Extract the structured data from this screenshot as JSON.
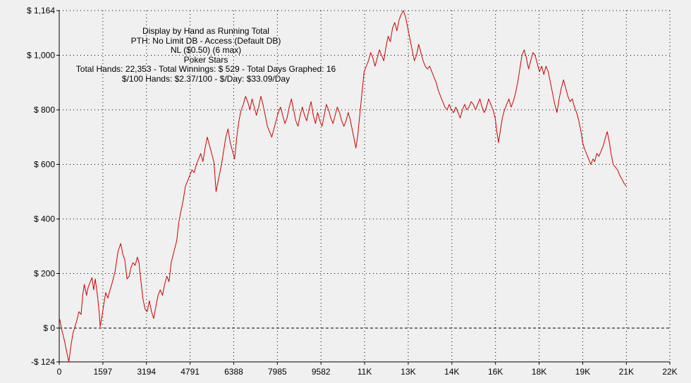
{
  "info": {
    "lines": [
      "Display by Hand as Running Total",
      "PTH: No Limit DB - Access (Default DB)",
      "NL ($0.50) (6 max)",
      "Poker Stars",
      "Total Hands: 22,353 - Total Winnings: $ 529 - Total Days Graphed: 16",
      "$/100 Hands: $2.37/100 - $/Day: $33.09/Day"
    ]
  },
  "colors": {
    "background": "#f0f0f0",
    "line": "#cc0000",
    "grid": "#000000"
  },
  "chart_data": {
    "type": "line",
    "title": "",
    "xlabel": "",
    "ylabel": "",
    "xlim": [
      0,
      22353
    ],
    "ylim": [
      -124,
      1164
    ],
    "grid": true,
    "zero_line": true,
    "x_ticks": [
      {
        "value": 0,
        "label": "0"
      },
      {
        "value": 1597,
        "label": "1597"
      },
      {
        "value": 3194,
        "label": "3194"
      },
      {
        "value": 4791,
        "label": "4791"
      },
      {
        "value": 6388,
        "label": "6388"
      },
      {
        "value": 7985,
        "label": "7985"
      },
      {
        "value": 9582,
        "label": "9582"
      },
      {
        "value": 11179,
        "label": "11K"
      },
      {
        "value": 12776,
        "label": "13K"
      },
      {
        "value": 14373,
        "label": "14K"
      },
      {
        "value": 15970,
        "label": "16K"
      },
      {
        "value": 17567,
        "label": "18K"
      },
      {
        "value": 19164,
        "label": "19K"
      },
      {
        "value": 20761,
        "label": "21K"
      },
      {
        "value": 22353,
        "label": "22K"
      }
    ],
    "y_ticks": [
      {
        "value": 1164,
        "label": "$ 1,164"
      },
      {
        "value": 1000,
        "label": "$ 1,000"
      },
      {
        "value": 800,
        "label": "$ 800"
      },
      {
        "value": 600,
        "label": "$ 600"
      },
      {
        "value": 400,
        "label": "$ 400"
      },
      {
        "value": 200,
        "label": "$ 200"
      },
      {
        "value": 0,
        "label": "$ 0"
      },
      {
        "value": -124,
        "label": "-$ 124"
      }
    ],
    "series": [
      {
        "values": [
          [
            0,
            40
          ],
          [
            100,
            -10
          ],
          [
            200,
            -50
          ],
          [
            300,
            -100
          ],
          [
            350,
            -124
          ],
          [
            420,
            -70
          ],
          [
            500,
            -20
          ],
          [
            560,
            0
          ],
          [
            650,
            30
          ],
          [
            720,
            60
          ],
          [
            800,
            50
          ],
          [
            860,
            120
          ],
          [
            920,
            160
          ],
          [
            1000,
            120
          ],
          [
            1060,
            150
          ],
          [
            1140,
            170
          ],
          [
            1200,
            185
          ],
          [
            1260,
            140
          ],
          [
            1320,
            180
          ],
          [
            1400,
            120
          ],
          [
            1460,
            60
          ],
          [
            1500,
            5
          ],
          [
            1560,
            40
          ],
          [
            1620,
            80
          ],
          [
            1700,
            130
          ],
          [
            1780,
            110
          ],
          [
            1860,
            140
          ],
          [
            1950,
            170
          ],
          [
            2050,
            210
          ],
          [
            2150,
            280
          ],
          [
            2250,
            310
          ],
          [
            2330,
            270
          ],
          [
            2400,
            250
          ],
          [
            2480,
            180
          ],
          [
            2560,
            190
          ],
          [
            2620,
            220
          ],
          [
            2700,
            240
          ],
          [
            2780,
            230
          ],
          [
            2860,
            260
          ],
          [
            2920,
            240
          ],
          [
            2980,
            180
          ],
          [
            3060,
            110
          ],
          [
            3140,
            70
          ],
          [
            3220,
            60
          ],
          [
            3300,
            100
          ],
          [
            3380,
            60
          ],
          [
            3460,
            35
          ],
          [
            3540,
            80
          ],
          [
            3620,
            120
          ],
          [
            3700,
            140
          ],
          [
            3780,
            120
          ],
          [
            3860,
            160
          ],
          [
            3940,
            190
          ],
          [
            4020,
            170
          ],
          [
            4100,
            240
          ],
          [
            4200,
            280
          ],
          [
            4300,
            320
          ],
          [
            4380,
            390
          ],
          [
            4460,
            430
          ],
          [
            4540,
            470
          ],
          [
            4620,
            520
          ],
          [
            4700,
            540
          ],
          [
            4780,
            560
          ],
          [
            4860,
            580
          ],
          [
            4940,
            570
          ],
          [
            5020,
            600
          ],
          [
            5100,
            620
          ],
          [
            5180,
            640
          ],
          [
            5260,
            610
          ],
          [
            5340,
            660
          ],
          [
            5420,
            700
          ],
          [
            5500,
            670
          ],
          [
            5580,
            640
          ],
          [
            5660,
            610
          ],
          [
            5700,
            560
          ],
          [
            5740,
            500
          ],
          [
            5800,
            530
          ],
          [
            5860,
            560
          ],
          [
            5940,
            600
          ],
          [
            6020,
            650
          ],
          [
            6100,
            700
          ],
          [
            6180,
            730
          ],
          [
            6260,
            680
          ],
          [
            6340,
            650
          ],
          [
            6420,
            620
          ],
          [
            6500,
            700
          ],
          [
            6580,
            760
          ],
          [
            6660,
            800
          ],
          [
            6740,
            820
          ],
          [
            6820,
            850
          ],
          [
            6900,
            830
          ],
          [
            6980,
            800
          ],
          [
            7060,
            840
          ],
          [
            7140,
            810
          ],
          [
            7220,
            780
          ],
          [
            7300,
            810
          ],
          [
            7380,
            850
          ],
          [
            7460,
            820
          ],
          [
            7540,
            780
          ],
          [
            7620,
            740
          ],
          [
            7700,
            720
          ],
          [
            7780,
            700
          ],
          [
            7860,
            730
          ],
          [
            7940,
            760
          ],
          [
            8020,
            790
          ],
          [
            8100,
            810
          ],
          [
            8180,
            780
          ],
          [
            8260,
            750
          ],
          [
            8340,
            770
          ],
          [
            8420,
            810
          ],
          [
            8500,
            840
          ],
          [
            8580,
            800
          ],
          [
            8660,
            760
          ],
          [
            8740,
            740
          ],
          [
            8820,
            780
          ],
          [
            8900,
            810
          ],
          [
            8980,
            780
          ],
          [
            9060,
            760
          ],
          [
            9140,
            800
          ],
          [
            9220,
            830
          ],
          [
            9300,
            780
          ],
          [
            9380,
            750
          ],
          [
            9460,
            790
          ],
          [
            9540,
            760
          ],
          [
            9620,
            740
          ],
          [
            9700,
            780
          ],
          [
            9780,
            820
          ],
          [
            9860,
            800
          ],
          [
            9940,
            770
          ],
          [
            10020,
            750
          ],
          [
            10100,
            780
          ],
          [
            10180,
            810
          ],
          [
            10260,
            790
          ],
          [
            10340,
            760
          ],
          [
            10420,
            740
          ],
          [
            10500,
            760
          ],
          [
            10580,
            790
          ],
          [
            10660,
            760
          ],
          [
            10740,
            720
          ],
          [
            10820,
            680
          ],
          [
            10860,
            660
          ],
          [
            10920,
            700
          ],
          [
            11000,
            780
          ],
          [
            11080,
            860
          ],
          [
            11160,
            940
          ],
          [
            11240,
            960
          ],
          [
            11320,
            980
          ],
          [
            11400,
            1010
          ],
          [
            11480,
            990
          ],
          [
            11560,
            960
          ],
          [
            11640,
            990
          ],
          [
            11720,
            1020
          ],
          [
            11800,
            1000
          ],
          [
            11880,
            980
          ],
          [
            11960,
            1030
          ],
          [
            12040,
            1070
          ],
          [
            12120,
            1050
          ],
          [
            12200,
            1100
          ],
          [
            12280,
            1120
          ],
          [
            12360,
            1090
          ],
          [
            12440,
            1130
          ],
          [
            12520,
            1150
          ],
          [
            12600,
            1164
          ],
          [
            12680,
            1140
          ],
          [
            12760,
            1100
          ],
          [
            12840,
            1060
          ],
          [
            12920,
            1020
          ],
          [
            13000,
            980
          ],
          [
            13080,
            1000
          ],
          [
            13160,
            1040
          ],
          [
            13240,
            1010
          ],
          [
            13320,
            980
          ],
          [
            13400,
            960
          ],
          [
            13480,
            950
          ],
          [
            13560,
            960
          ],
          [
            13640,
            940
          ],
          [
            13720,
            920
          ],
          [
            13800,
            900
          ],
          [
            13880,
            870
          ],
          [
            13960,
            850
          ],
          [
            14040,
            830
          ],
          [
            14120,
            810
          ],
          [
            14200,
            800
          ],
          [
            14280,
            820
          ],
          [
            14360,
            800
          ],
          [
            14440,
            790
          ],
          [
            14520,
            810
          ],
          [
            14600,
            790
          ],
          [
            14680,
            770
          ],
          [
            14760,
            800
          ],
          [
            14840,
            820
          ],
          [
            14920,
            800
          ],
          [
            15000,
            810
          ],
          [
            15080,
            830
          ],
          [
            15160,
            820
          ],
          [
            15240,
            800
          ],
          [
            15320,
            820
          ],
          [
            15400,
            840
          ],
          [
            15480,
            810
          ],
          [
            15560,
            790
          ],
          [
            15640,
            810
          ],
          [
            15720,
            840
          ],
          [
            15800,
            820
          ],
          [
            15880,
            800
          ],
          [
            15960,
            770
          ],
          [
            16020,
            720
          ],
          [
            16080,
            680
          ],
          [
            16140,
            720
          ],
          [
            16220,
            770
          ],
          [
            16300,
            800
          ],
          [
            16380,
            820
          ],
          [
            16460,
            840
          ],
          [
            16540,
            810
          ],
          [
            16620,
            830
          ],
          [
            16700,
            860
          ],
          [
            16780,
            900
          ],
          [
            16860,
            950
          ],
          [
            16940,
            1000
          ],
          [
            17020,
            1020
          ],
          [
            17100,
            990
          ],
          [
            17180,
            950
          ],
          [
            17260,
            980
          ],
          [
            17340,
            1010
          ],
          [
            17420,
            1000
          ],
          [
            17500,
            970
          ],
          [
            17580,
            940
          ],
          [
            17660,
            960
          ],
          [
            17740,
            930
          ],
          [
            17820,
            960
          ],
          [
            17900,
            940
          ],
          [
            17980,
            900
          ],
          [
            18060,
            860
          ],
          [
            18140,
            820
          ],
          [
            18220,
            790
          ],
          [
            18300,
            840
          ],
          [
            18380,
            880
          ],
          [
            18460,
            910
          ],
          [
            18540,
            880
          ],
          [
            18620,
            850
          ],
          [
            18700,
            830
          ],
          [
            18780,
            840
          ],
          [
            18860,
            810
          ],
          [
            18940,
            790
          ],
          [
            19020,
            760
          ],
          [
            19100,
            720
          ],
          [
            19160,
            680
          ],
          [
            19220,
            660
          ],
          [
            19300,
            640
          ],
          [
            19380,
            620
          ],
          [
            19460,
            600
          ],
          [
            19540,
            620
          ],
          [
            19600,
            610
          ],
          [
            19680,
            640
          ],
          [
            19760,
            630
          ],
          [
            19840,
            650
          ],
          [
            19920,
            670
          ],
          [
            20000,
            700
          ],
          [
            20060,
            720
          ],
          [
            20140,
            680
          ],
          [
            20200,
            640
          ],
          [
            20280,
            600
          ],
          [
            20360,
            590
          ],
          [
            20440,
            580
          ],
          [
            20520,
            560
          ],
          [
            20600,
            545
          ],
          [
            20680,
            530
          ],
          [
            20760,
            520
          ]
        ]
      }
    ]
  }
}
